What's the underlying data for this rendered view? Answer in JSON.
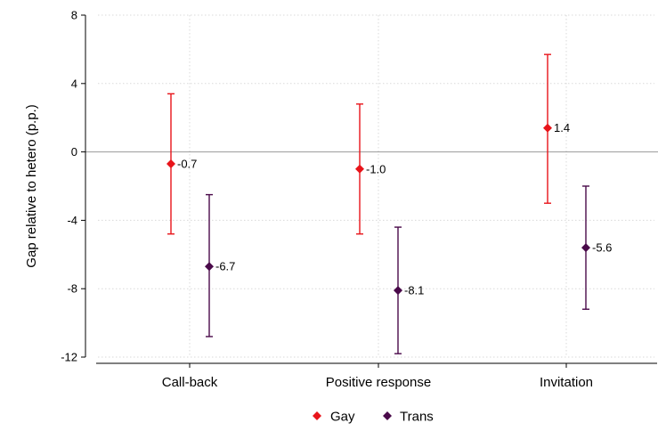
{
  "chart_data": {
    "type": "scatter",
    "subtype": "point-estimate-with-confidence-intervals",
    "categories": [
      "Call-back",
      "Positive response",
      "Invitation"
    ],
    "ylabel": "Gap relative to hetero (p.p.)",
    "xlabel": "",
    "ylim": [
      -12,
      8
    ],
    "yticks": [
      8,
      4,
      0,
      -4,
      -8,
      -12
    ],
    "ytick_labels": [
      "8",
      "4",
      "0",
      "-4",
      "-8",
      "-12"
    ],
    "grid": true,
    "reference_line_y": 0,
    "legend_position": "bottom",
    "series": [
      {
        "name": "Gay",
        "color": "#e8141a",
        "marker": "diamond",
        "values": [
          -0.7,
          -1.0,
          1.4
        ],
        "ci_low": [
          -4.8,
          -4.8,
          -3.0
        ],
        "ci_high": [
          3.4,
          2.8,
          5.7
        ],
        "labels": [
          "-0.7",
          "-1.0",
          "1.4"
        ]
      },
      {
        "name": "Trans",
        "color": "#4a0a4a",
        "marker": "diamond",
        "values": [
          -6.7,
          -8.1,
          -5.6
        ],
        "ci_low": [
          -10.8,
          -11.8,
          -9.2
        ],
        "ci_high": [
          -2.5,
          -4.4,
          -2.0
        ],
        "labels": [
          "-6.7",
          "-8.1",
          "-5.6"
        ]
      }
    ]
  }
}
